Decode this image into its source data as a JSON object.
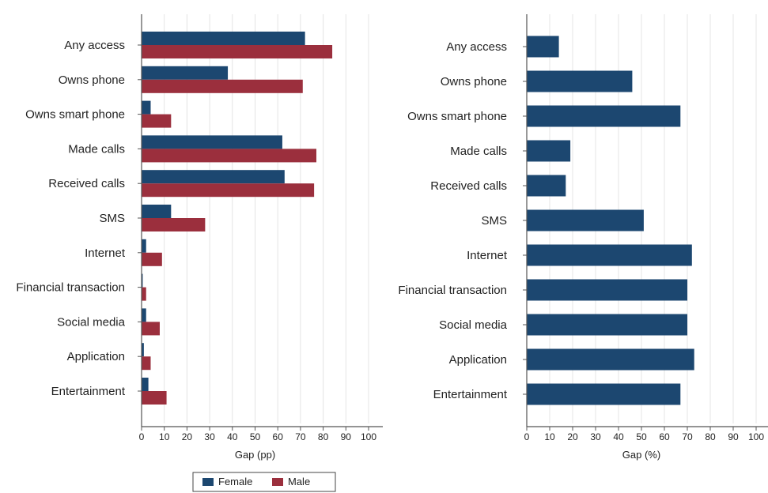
{
  "colors": {
    "female": "#1c4770",
    "male": "#9b2f3d",
    "bar": "#1c4770",
    "grid": "#e4e4e4",
    "axis": "#555555"
  },
  "chart_data": [
    {
      "type": "bar",
      "orientation": "horizontal",
      "categories": [
        "Any access",
        "Owns phone",
        "Owns smart phone",
        "Made calls",
        "Received calls",
        "SMS",
        "Internet",
        "Financial transaction",
        "Social media",
        "Application",
        "Entertainment"
      ],
      "series": [
        {
          "name": "Female",
          "values": [
            72,
            38,
            4,
            62,
            63,
            13,
            2,
            0.5,
            2,
            1,
            3
          ]
        },
        {
          "name": "Male",
          "values": [
            84,
            71,
            13,
            77,
            76,
            28,
            9,
            2,
            8,
            4,
            11
          ]
        }
      ],
      "xlabel": "Gap (pp)",
      "xlim": [
        0,
        100
      ],
      "xticks": [
        0,
        10,
        20,
        30,
        40,
        50,
        60,
        70,
        80,
        90,
        100
      ],
      "grid": true,
      "legend": {
        "position": "bottom",
        "entries": [
          "Female",
          "Male"
        ]
      }
    },
    {
      "type": "bar",
      "orientation": "horizontal",
      "categories": [
        "Any access",
        "Owns phone",
        "Owns smart phone",
        "Made calls",
        "Received calls",
        "SMS",
        "Internet",
        "Financial transaction",
        "Social media",
        "Application",
        "Entertainment"
      ],
      "values": [
        14,
        46,
        67,
        19,
        17,
        51,
        72,
        70,
        70,
        73,
        67
      ],
      "xlabel": "Gap (%)",
      "xlim": [
        0,
        100
      ],
      "xticks": [
        0,
        10,
        20,
        30,
        40,
        50,
        60,
        70,
        80,
        90,
        100
      ],
      "grid": true
    }
  ]
}
